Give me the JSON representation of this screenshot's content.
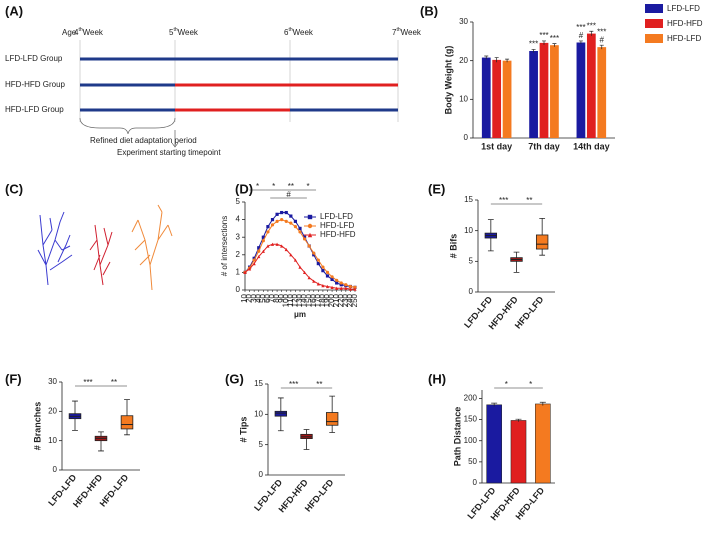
{
  "panel_label": "(A)",
  "timeline": {
    "age_label": "Age",
    "weeks": [
      {
        "n": "4",
        "sup": "th",
        "label": "Week"
      },
      {
        "n": "5",
        "sup": "th",
        "label": "Week"
      },
      {
        "n": "6",
        "sup": "th",
        "label": "Week"
      },
      {
        "n": "7",
        "sup": "th",
        "label": "Week"
      }
    ],
    "groups": [
      {
        "label": "LFD-LFD Group",
        "color": "#1f3a8a",
        "segments": [
          "#1f3a8a",
          "#1f3a8a",
          "#1f3a8a"
        ]
      },
      {
        "label": "HFD-HFD Group",
        "color": "#e02020",
        "segments": [
          "#1f3a8a",
          "#e02020",
          "#e02020"
        ]
      },
      {
        "label": "HFD-LFD Group",
        "color": "#f5b800",
        "segments": [
          "#1f3a8a",
          "#e02020",
          "#1f3a8a"
        ]
      }
    ],
    "brace_label": "Refined diet adaptation period",
    "start_label": "Experiment starting timepoint"
  },
  "image_panel_label": "(C)",
  "chart_data": [
    {
      "type": "bar",
      "panel": "(B)",
      "ylabel": "Body Weight (g)",
      "categories": [
        "1st day",
        "7th day",
        "14th day"
      ],
      "ylim": [
        0,
        30
      ],
      "yticks": [
        0,
        10,
        20,
        30
      ],
      "legend": "outside-right",
      "series": [
        {
          "name": "LFD-LFD",
          "color": "#1a1aa0",
          "values": [
            20.8,
            22.5,
            24.7
          ],
          "errors": [
            0.4,
            0.4,
            0.4
          ],
          "stars": [
            null,
            "***",
            "***"
          ],
          "hashes": [
            null,
            null,
            "#"
          ]
        },
        {
          "name": "HFD-HFD",
          "color": "#e02020",
          "values": [
            20.2,
            24.6,
            27.0
          ],
          "errors": [
            0.6,
            0.5,
            0.6
          ],
          "stars": [
            null,
            "***",
            "***"
          ],
          "hashes": [
            null,
            null,
            null
          ]
        },
        {
          "name": "HFD-LFD",
          "color": "#f47a20",
          "values": [
            20.0,
            24.0,
            23.5
          ],
          "errors": [
            0.4,
            0.4,
            0.5
          ],
          "stars": [
            null,
            "***",
            "***"
          ],
          "hashes": [
            null,
            null,
            "#"
          ]
        }
      ]
    },
    {
      "type": "line",
      "panel": "(D)",
      "ylabel": "# of intersections",
      "xlabel": "μm",
      "x": [
        10,
        20,
        30,
        40,
        50,
        60,
        70,
        80,
        90,
        100,
        110,
        120,
        130,
        140,
        150,
        160,
        170,
        180,
        190,
        200,
        210,
        220,
        230,
        240,
        250
      ],
      "xlim": [
        10,
        250
      ],
      "xticks": [
        10,
        20,
        30,
        40,
        50,
        60,
        70,
        80,
        90,
        100,
        110,
        120,
        130,
        140,
        150,
        160,
        170,
        180,
        190,
        200,
        210,
        220,
        230,
        240,
        250
      ],
      "ylim": [
        0,
        5
      ],
      "yticks": [
        0,
        1,
        2,
        3,
        4,
        5
      ],
      "legend": "upper-right",
      "series": [
        {
          "name": "LFD-LFD",
          "color": "#1a1aa0",
          "marker": "square",
          "values": [
            1.0,
            1.3,
            1.8,
            2.4,
            3.0,
            3.6,
            4.0,
            4.3,
            4.4,
            4.4,
            4.2,
            3.9,
            3.5,
            3.0,
            2.5,
            2.0,
            1.5,
            1.1,
            0.8,
            0.6,
            0.4,
            0.3,
            0.25,
            0.2,
            0.15
          ]
        },
        {
          "name": "HFD-LFD",
          "color": "#f47a20",
          "marker": "circle",
          "values": [
            1.0,
            1.25,
            1.7,
            2.2,
            2.8,
            3.3,
            3.7,
            3.9,
            4.0,
            3.9,
            3.8,
            3.6,
            3.3,
            2.9,
            2.5,
            2.1,
            1.7,
            1.3,
            1.0,
            0.75,
            0.55,
            0.4,
            0.3,
            0.2,
            0.15
          ]
        },
        {
          "name": "HFD-HFD",
          "color": "#e02020",
          "marker": "triangle",
          "values": [
            1.0,
            1.2,
            1.5,
            1.9,
            2.2,
            2.5,
            2.6,
            2.6,
            2.5,
            2.3,
            2.0,
            1.7,
            1.3,
            1.0,
            0.7,
            0.5,
            0.35,
            0.25,
            0.2,
            0.15,
            0.1,
            0.1,
            0.1,
            0.05,
            0.05
          ]
        }
      ],
      "annotations": [
        {
          "text": "*",
          "from": 20,
          "to": 55
        },
        {
          "text": "*",
          "from": 55,
          "to": 90
        },
        {
          "text": "**",
          "from": 90,
          "to": 130
        },
        {
          "text": "*",
          "from": 130,
          "to": 165
        },
        {
          "text": "#",
          "from": 65,
          "to": 145
        }
      ]
    },
    {
      "type": "box",
      "panel": "(E)",
      "ylabel": "# Bifs",
      "categories": [
        "LFD-LFD",
        "HFD-HFD",
        "HFD-LFD"
      ],
      "colors": [
        "#1a1aa0",
        "#a01818",
        "#f47a20"
      ],
      "ylim": [
        0,
        15
      ],
      "yticks": [
        0,
        5,
        10,
        15
      ],
      "boxes": [
        {
          "min": 6.7,
          "q1": 8.8,
          "median": 9.2,
          "q3": 9.6,
          "max": 11.8
        },
        {
          "min": 3.2,
          "q1": 5.0,
          "median": 5.3,
          "q3": 5.6,
          "max": 6.5
        },
        {
          "min": 6.0,
          "q1": 7.0,
          "median": 7.8,
          "q3": 9.3,
          "max": 12.0
        }
      ],
      "comparisons": [
        {
          "text": "***",
          "pair": [
            0,
            1
          ]
        },
        {
          "text": "**",
          "pair": [
            1,
            2
          ]
        }
      ]
    },
    {
      "type": "box",
      "panel": "(F)",
      "ylabel": "# Branches",
      "categories": [
        "LFD-LFD",
        "HFD-HFD",
        "HFD-LFD"
      ],
      "colors": [
        "#1a1aa0",
        "#a01818",
        "#f47a20"
      ],
      "ylim": [
        0,
        30
      ],
      "yticks": [
        0,
        10,
        20,
        30
      ],
      "boxes": [
        {
          "min": 13.5,
          "q1": 17.5,
          "median": 18.3,
          "q3": 19.2,
          "max": 23.5
        },
        {
          "min": 6.5,
          "q1": 10.0,
          "median": 10.8,
          "q3": 11.5,
          "max": 13.0
        },
        {
          "min": 12.0,
          "q1": 14.0,
          "median": 15.5,
          "q3": 18.5,
          "max": 24.0
        }
      ],
      "comparisons": [
        {
          "text": "***",
          "pair": [
            0,
            1
          ]
        },
        {
          "text": "**",
          "pair": [
            1,
            2
          ]
        }
      ]
    },
    {
      "type": "box",
      "panel": "(G)",
      "ylabel": "# Tips",
      "categories": [
        "LFD-LFD",
        "HFD-HFD",
        "HFD-LFD"
      ],
      "colors": [
        "#1a1aa0",
        "#a01818",
        "#f47a20"
      ],
      "ylim": [
        0,
        15
      ],
      "yticks": [
        0,
        5,
        10,
        15
      ],
      "boxes": [
        {
          "min": 7.3,
          "q1": 9.7,
          "median": 10.2,
          "q3": 10.5,
          "max": 12.7
        },
        {
          "min": 4.2,
          "q1": 6.0,
          "median": 6.3,
          "q3": 6.7,
          "max": 7.5
        },
        {
          "min": 7.0,
          "q1": 8.2,
          "median": 8.8,
          "q3": 10.3,
          "max": 13.0
        }
      ],
      "comparisons": [
        {
          "text": "***",
          "pair": [
            0,
            1
          ]
        },
        {
          "text": "**",
          "pair": [
            1,
            2
          ]
        }
      ]
    },
    {
      "type": "bar",
      "panel": "(H)",
      "ylabel": "Path Distance",
      "categories": [
        "LFD-LFD",
        "HFD-HFD",
        "HFD-LFD"
      ],
      "colors": [
        "#1a1aa0",
        "#e02020",
        "#f47a20"
      ],
      "ylim": [
        0,
        220
      ],
      "yticks": [
        0,
        50,
        100,
        150,
        200
      ],
      "values": [
        185,
        148,
        187
      ],
      "errors": [
        4,
        3,
        4
      ],
      "comparisons": [
        {
          "text": "*",
          "pair": [
            0,
            1
          ]
        },
        {
          "text": "*",
          "pair": [
            1,
            2
          ]
        }
      ]
    }
  ]
}
